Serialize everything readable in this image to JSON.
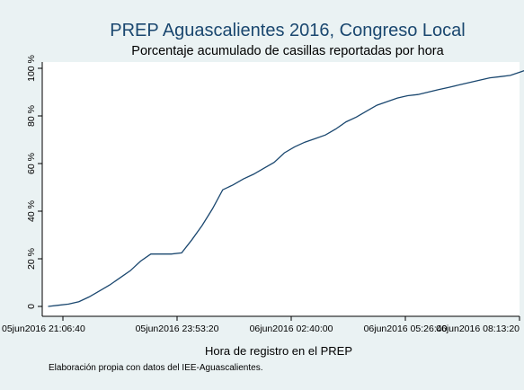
{
  "chart_data": {
    "type": "line",
    "title": "PREP Aguascalientes 2016, Congreso Local",
    "subtitle": "Porcentaje acumulado de casillas reportadas por hora",
    "xlabel": "Hora de registro en el PREP",
    "ylabel": "",
    "note": "Elaboración propia con datos del IEE-Aguascalientes.",
    "x_ticks": [
      "05jun2016 21:06:40",
      "05jun2016 23:53:20",
      "06jun2016 02:40:00",
      "06jun2016 05:26:40",
      "06jun2016 08:13:20"
    ],
    "y_ticks": [
      "0",
      "20 %",
      "40 %",
      "60 %",
      "80 %",
      "100 %"
    ],
    "ylim": [
      0,
      100
    ],
    "grid": false,
    "series": [
      {
        "x": [
          "05jun2016 20:45",
          "05jun2016 21:00",
          "05jun2016 21:15",
          "05jun2016 21:30",
          "05jun2016 21:45",
          "05jun2016 22:00",
          "05jun2016 22:15",
          "05jun2016 22:30",
          "05jun2016 22:45",
          "05jun2016 23:00",
          "05jun2016 23:15",
          "05jun2016 23:30",
          "05jun2016 23:45",
          "06jun2016 00:00",
          "06jun2016 00:15",
          "06jun2016 00:30",
          "06jun2016 00:45",
          "06jun2016 01:00",
          "06jun2016 01:15",
          "06jun2016 01:30",
          "06jun2016 01:45",
          "06jun2016 02:00",
          "06jun2016 02:15",
          "06jun2016 02:30",
          "06jun2016 02:45",
          "06jun2016 03:00",
          "06jun2016 03:15",
          "06jun2016 03:30",
          "06jun2016 03:45",
          "06jun2016 04:00",
          "06jun2016 04:15",
          "06jun2016 04:30",
          "06jun2016 04:45",
          "06jun2016 05:00",
          "06jun2016 05:15",
          "06jun2016 05:30",
          "06jun2016 05:45",
          "06jun2016 06:00",
          "06jun2016 06:15",
          "06jun2016 06:30",
          "06jun2016 06:45",
          "06jun2016 07:00",
          "06jun2016 07:15",
          "06jun2016 07:30",
          "06jun2016 07:45",
          "06jun2016 08:00",
          "06jun2016 08:15",
          "06jun2016 08:30",
          "06jun2016 08:45"
        ],
        "values": [
          0,
          0.5,
          1,
          2,
          4,
          6.5,
          9,
          12,
          15,
          19,
          22,
          22,
          22,
          22.5,
          28,
          34,
          41,
          49,
          51,
          53.5,
          55.5,
          58,
          60.5,
          64.5,
          67,
          69,
          70.5,
          72,
          74.5,
          77.5,
          79.5,
          82,
          84.5,
          86,
          87.5,
          88.5,
          89,
          90,
          91,
          92,
          93,
          94,
          95,
          96,
          96.5,
          97,
          98.5,
          100,
          100
        ]
      }
    ]
  }
}
